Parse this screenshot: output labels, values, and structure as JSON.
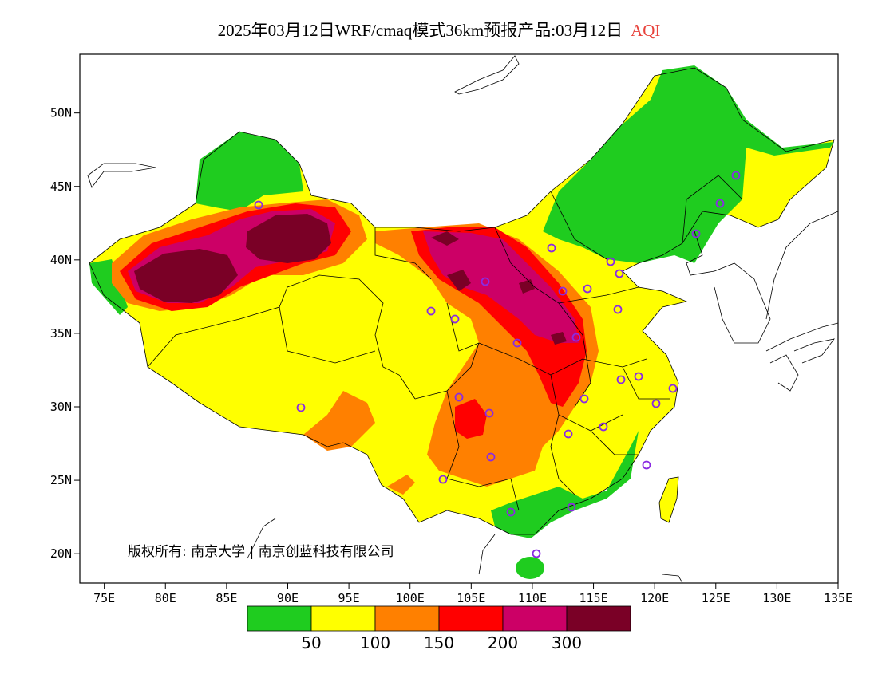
{
  "title": {
    "main": "2025年03月12日WRF/cmaq模式36km预报产品:03月12日",
    "variable": "AQI"
  },
  "axes": {
    "lat_ticks": [
      "50N",
      "45N",
      "40N",
      "35N",
      "30N",
      "25N",
      "20N"
    ],
    "lat_values": [
      50,
      45,
      40,
      35,
      30,
      25,
      20
    ],
    "lon_ticks": [
      "75E",
      "80E",
      "85E",
      "90E",
      "95E",
      "100E",
      "105E",
      "110E",
      "115E",
      "120E",
      "125E",
      "130E",
      "135E"
    ],
    "lon_values": [
      75,
      80,
      85,
      90,
      95,
      100,
      105,
      110,
      115,
      120,
      125,
      130,
      135
    ],
    "lon_range": [
      73,
      135
    ],
    "lat_range": [
      18,
      54
    ]
  },
  "credit": "版权所有: 南京大学 | 南京创蓝科技有限公司",
  "legend": {
    "colors": [
      "#1fcc1f",
      "#ffff00",
      "#ff8000",
      "#ff0000",
      "#cc0066",
      "#7a0026"
    ],
    "labels": [
      "50",
      "100",
      "150",
      "200",
      "300"
    ]
  },
  "station_color": "#8a2be2"
}
